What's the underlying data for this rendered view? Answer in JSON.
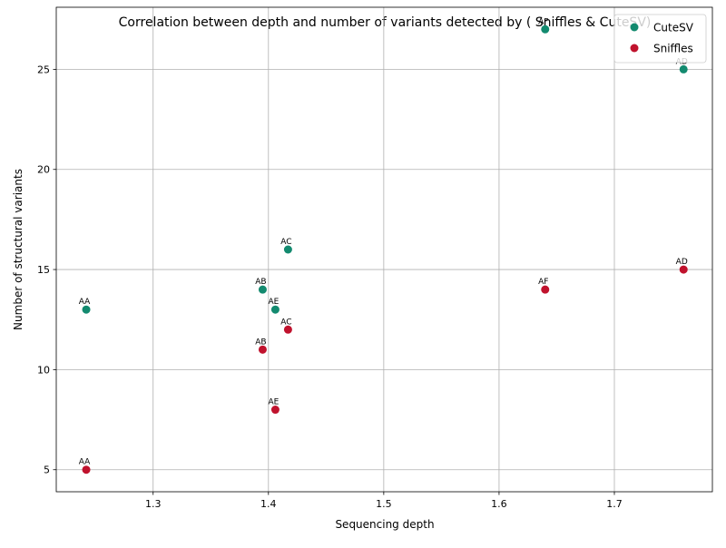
{
  "chart_data": {
    "type": "scatter",
    "title": "Correlation between depth and number of variants detected by ( Sniffles & CuteSV)",
    "xlabel": "Sequencing depth",
    "ylabel": "Number of structural variants",
    "xlim": [
      1.216,
      1.785
    ],
    "ylim": [
      3.9,
      28.1
    ],
    "xticks": [
      1.3,
      1.4,
      1.5,
      1.6,
      1.7
    ],
    "xtick_labels": [
      "1.3",
      "1.4",
      "1.5",
      "1.6",
      "1.7"
    ],
    "yticks": [
      5,
      10,
      15,
      20,
      25
    ],
    "ytick_labels": [
      "5",
      "10",
      "15",
      "20",
      "25"
    ],
    "grid": true,
    "legend_position": "top-right",
    "series": [
      {
        "name": "CuteSV",
        "color": "#138a6f",
        "points": [
          {
            "label": "AA",
            "x": 1.242,
            "y": 13
          },
          {
            "label": "AB",
            "x": 1.395,
            "y": 14
          },
          {
            "label": "AC",
            "x": 1.417,
            "y": 16
          },
          {
            "label": "AD",
            "x": 1.76,
            "y": 25
          },
          {
            "label": "AE",
            "x": 1.406,
            "y": 13
          },
          {
            "label": "AF",
            "x": 1.64,
            "y": 27
          }
        ]
      },
      {
        "name": "Sniffles",
        "color": "#c0122d",
        "points": [
          {
            "label": "AA",
            "x": 1.242,
            "y": 5
          },
          {
            "label": "AB",
            "x": 1.395,
            "y": 11
          },
          {
            "label": "AC",
            "x": 1.417,
            "y": 12
          },
          {
            "label": "AD",
            "x": 1.76,
            "y": 15
          },
          {
            "label": "AE",
            "x": 1.406,
            "y": 8
          },
          {
            "label": "AF",
            "x": 1.64,
            "y": 14
          }
        ]
      }
    ]
  }
}
